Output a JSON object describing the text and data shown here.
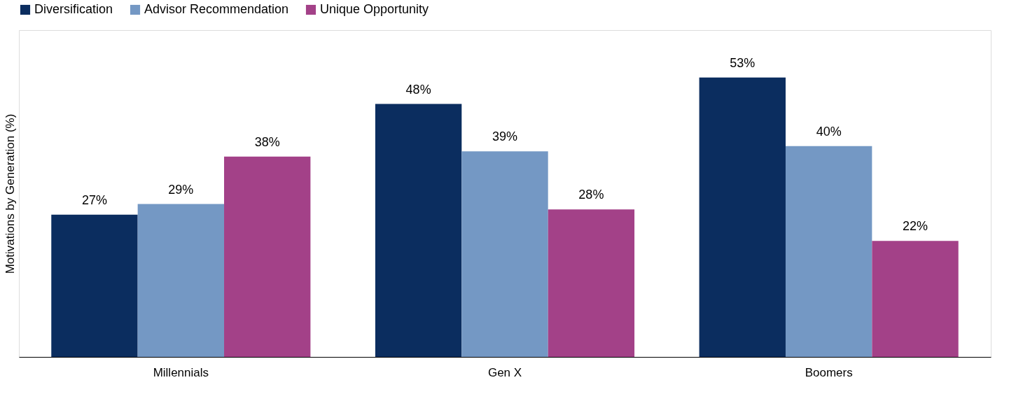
{
  "chart_data": {
    "type": "bar",
    "ylabel": "Motivations by Generation (%)",
    "categories": [
      "Millennials",
      "Gen X",
      "Boomers"
    ],
    "series": [
      {
        "name": "Diversification",
        "color": "#0b2d5f",
        "values": [
          27,
          48,
          53
        ],
        "value_labels": [
          "27%",
          "48%",
          "53%"
        ]
      },
      {
        "name": "Advisor Recommendation",
        "color": "#7498c4",
        "values": [
          29,
          39,
          40
        ],
        "value_labels": [
          "29%",
          "39%",
          "40%"
        ]
      },
      {
        "name": "Unique Opportunity",
        "color": "#a34188",
        "values": [
          38,
          28,
          22
        ],
        "value_labels": [
          "38%",
          "28%",
          "22%"
        ]
      }
    ],
    "legend": "top left",
    "grid": false
  }
}
